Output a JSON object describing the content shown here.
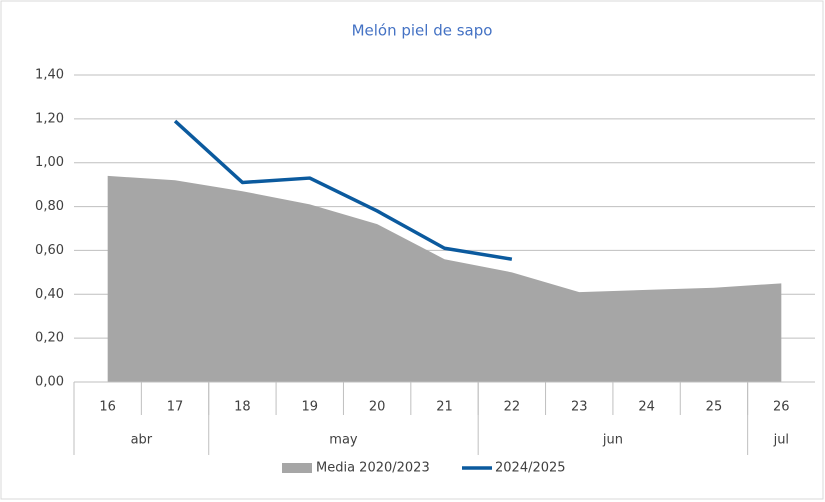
{
  "chart_data": {
    "type": "line",
    "title": "Melón piel de sapo",
    "categories": [
      "16",
      "17",
      "18",
      "19",
      "20",
      "21",
      "22",
      "23",
      "24",
      "25",
      "26"
    ],
    "month_groups": [
      {
        "label": "abr",
        "span": 2
      },
      {
        "label": "may",
        "span": 4
      },
      {
        "label": "jun",
        "span": 4
      },
      {
        "label": "jul",
        "span": 1
      }
    ],
    "series": [
      {
        "name": "Media 2020/2023",
        "kind": "area",
        "color": "#a6a6a6",
        "values": [
          0.94,
          0.92,
          0.87,
          0.81,
          0.72,
          0.56,
          0.5,
          0.41,
          0.42,
          0.43,
          0.45
        ]
      },
      {
        "name": "2024/2025",
        "kind": "line",
        "color": "#0b5a9e",
        "values": [
          null,
          1.19,
          0.91,
          0.93,
          0.78,
          0.61,
          0.56,
          null,
          null,
          null,
          null
        ]
      }
    ],
    "ylim": [
      0,
      1.4
    ],
    "yticks": [
      {
        "value": 0,
        "label": "0,00"
      },
      {
        "value": 0.2,
        "label": "0,20"
      },
      {
        "value": 0.4,
        "label": "0,40"
      },
      {
        "value": 0.6,
        "label": "0,60"
      },
      {
        "value": 0.8,
        "label": "0,80"
      },
      {
        "value": 1.0,
        "label": "1,00"
      },
      {
        "value": 1.2,
        "label": "1,20"
      },
      {
        "value": 1.4,
        "label": "1,40"
      }
    ],
    "grid": true,
    "legend": "bottom"
  }
}
